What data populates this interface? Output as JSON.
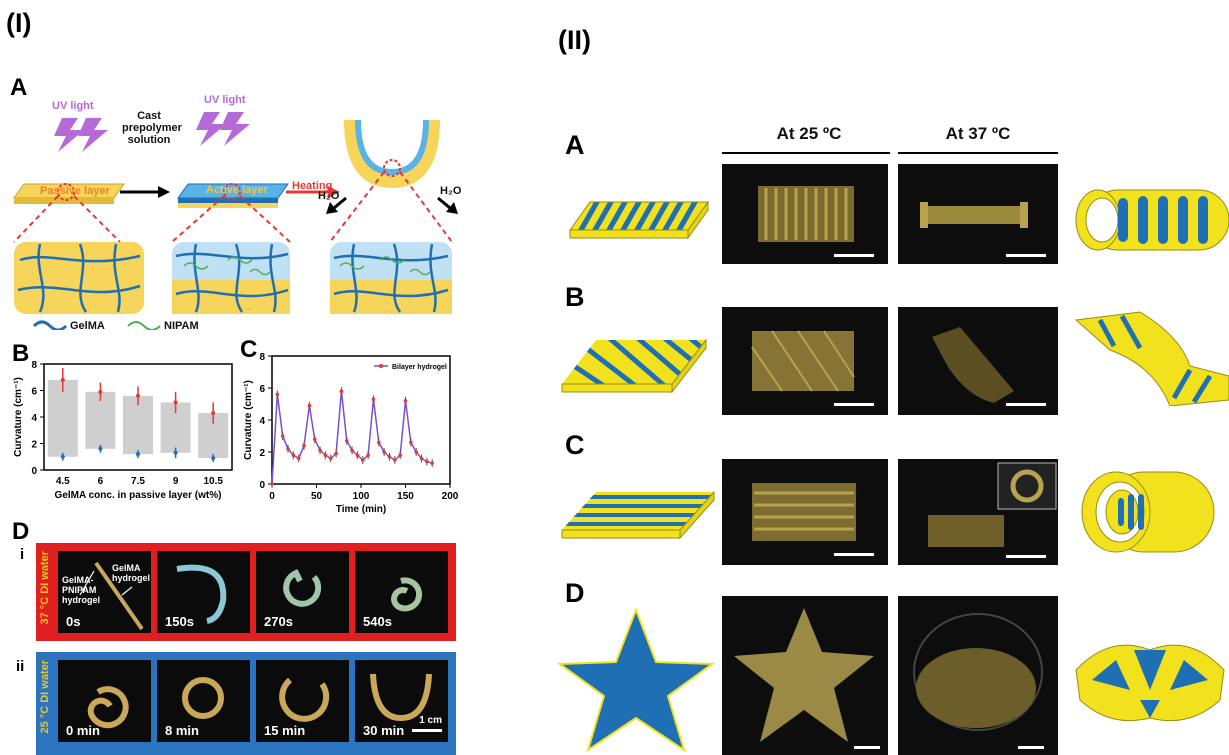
{
  "part_labels": {
    "part1": "(I)",
    "part2": "(II)"
  },
  "fig1": {
    "panel_A": "A",
    "uv_light": "UV light",
    "uv_light_2": "UV light",
    "cast_text": [
      "Cast",
      "prepolymer",
      "solution"
    ],
    "passive_layer": "Passive layer",
    "active_layer": "Active layer",
    "heating": "Heating",
    "h2o_left": "H₂O",
    "h2o_right": "H₂O",
    "legend_gelma": "GelMA",
    "legend_nipam": "NIPAM",
    "colors": {
      "yellow": "#f7d45a",
      "blue": "#1f6fb5",
      "light_blue": "#bfe1f3",
      "green": "#4caf50",
      "red": "#e53935",
      "purple": "#b66ad8"
    },
    "panel_B": "B",
    "panel_C": "C",
    "panel_D": "D",
    "row_i": "i",
    "row_ii": "ii",
    "d_row1_label": "37 °C DI water",
    "d_row2_label": "25 °C DI water",
    "d_annot_pnipam": [
      "GelMA-",
      "PNIPAM",
      "hydrogel"
    ],
    "d_annot_gelma": [
      "GelMA",
      "hydrogel"
    ],
    "d_row1_times": [
      "0s",
      "150s",
      "270s",
      "540s"
    ],
    "d_row2_times": [
      "0 min",
      "8 min",
      "15 min",
      "30 min"
    ],
    "d_scale": "1 cm"
  },
  "chart_data": [
    {
      "type": "bar",
      "panel": "B",
      "categories": [
        "4.5",
        "6",
        "7.5",
        "9",
        "10.5"
      ],
      "series": [
        {
          "values_high": [
            6.8,
            5.9,
            5.6,
            5.1,
            4.3
          ],
          "values_low": [
            1.0,
            1.6,
            1.2,
            1.3,
            0.9
          ]
        }
      ],
      "err_high": [
        0.9,
        0.7,
        0.7,
        0.8,
        0.8
      ],
      "err_low": [
        0.3,
        0.3,
        0.3,
        0.4,
        0.3
      ],
      "xlabel": "GelMA conc. in passive layer (wt%)",
      "ylabel": "Curvature (cm⁻¹)",
      "ylim": [
        0,
        8
      ],
      "yticks": [
        "0",
        "2",
        "4",
        "6",
        "8"
      ]
    },
    {
      "type": "line",
      "panel": "C",
      "series": [
        {
          "name": "Bilayer hydrogel",
          "x": [
            0,
            6,
            12,
            18,
            24,
            30,
            36,
            42,
            48,
            54,
            60,
            66,
            72,
            78,
            84,
            90,
            96,
            102,
            108,
            114,
            120,
            126,
            132,
            138,
            144,
            150,
            156,
            162,
            168,
            174,
            180
          ],
          "y": [
            0,
            5.6,
            3.0,
            2.2,
            1.8,
            1.6,
            2.4,
            4.9,
            2.8,
            2.1,
            1.8,
            1.6,
            1.9,
            5.8,
            2.7,
            2.1,
            1.8,
            1.5,
            1.8,
            5.3,
            2.6,
            2.0,
            1.7,
            1.5,
            1.8,
            5.2,
            2.6,
            2.0,
            1.6,
            1.4,
            1.3
          ]
        }
      ],
      "xlabel": "Time (min)",
      "ylabel": "Curvature (cm⁻¹)",
      "xlim": [
        0,
        200
      ],
      "ylim": [
        0,
        8
      ],
      "xticks": [
        "0",
        "50",
        "100",
        "150",
        "200"
      ],
      "yticks": [
        "0",
        "2",
        "4",
        "6",
        "8"
      ]
    }
  ],
  "fig2": {
    "header_25": "At 25 ºC",
    "header_37": "At 37 ºC",
    "rows": [
      {
        "label": "A"
      },
      {
        "label": "B"
      },
      {
        "label": "C"
      },
      {
        "label": "D"
      }
    ]
  }
}
